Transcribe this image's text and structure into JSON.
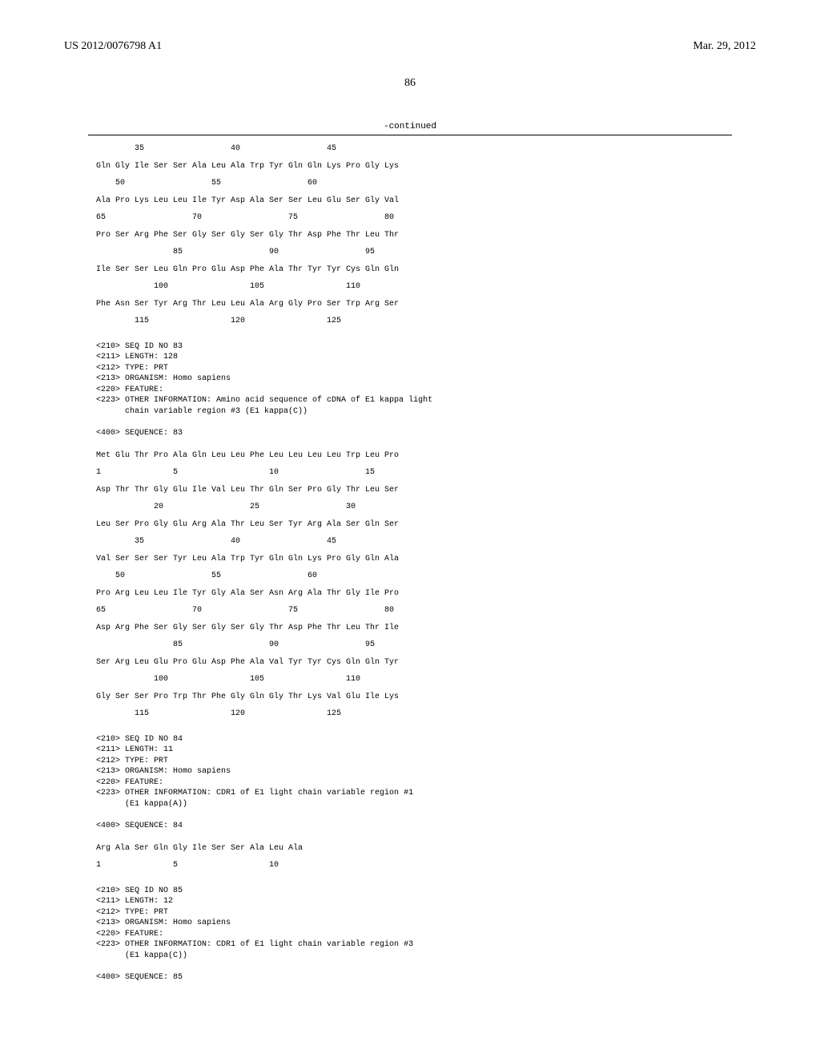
{
  "header": {
    "doc_number": "US 2012/0076798 A1",
    "doc_date": "Mar. 29, 2012"
  },
  "page_num": "86",
  "continued_label": "-continued",
  "seq_row_pos_1": "        35                  40                  45",
  "seq_a": [
    "Gln Gly Ile Ser Ser Ala Leu Ala Trp Tyr Gln Gln Lys Pro Gly Lys",
    "    50                  55                  60",
    "Ala Pro Lys Leu Leu Ile Tyr Asp Ala Ser Ser Leu Glu Ser Gly Val",
    "65                  70                  75                  80",
    "Pro Ser Arg Phe Ser Gly Ser Gly Ser Gly Thr Asp Phe Thr Leu Thr",
    "                85                  90                  95",
    "Ile Ser Ser Leu Gln Pro Glu Asp Phe Ala Thr Tyr Tyr Cys Gln Gln",
    "            100                 105                 110",
    "Phe Asn Ser Tyr Arg Thr Leu Leu Ala Arg Gly Pro Ser Trp Arg Ser",
    "        115                 120                 125"
  ],
  "meta_83": "<210> SEQ ID NO 83\n<211> LENGTH: 128\n<212> TYPE: PRT\n<213> ORGANISM: Homo sapiens\n<220> FEATURE:\n<223> OTHER INFORMATION: Amino acid sequence of cDNA of E1 kappa light\n      chain variable region #3 (E1 kappa(C))",
  "seq_83_label": "<400> SEQUENCE: 83",
  "seq_b": [
    "Met Glu Thr Pro Ala Gln Leu Leu Phe Leu Leu Leu Leu Trp Leu Pro",
    "1               5                   10                  15",
    "Asp Thr Thr Gly Glu Ile Val Leu Thr Gln Ser Pro Gly Thr Leu Ser",
    "            20                  25                  30",
    "Leu Ser Pro Gly Glu Arg Ala Thr Leu Ser Tyr Arg Ala Ser Gln Ser",
    "        35                  40                  45",
    "Val Ser Ser Ser Tyr Leu Ala Trp Tyr Gln Gln Lys Pro Gly Gln Ala",
    "    50                  55                  60",
    "Pro Arg Leu Leu Ile Tyr Gly Ala Ser Asn Arg Ala Thr Gly Ile Pro",
    "65                  70                  75                  80",
    "Asp Arg Phe Ser Gly Ser Gly Ser Gly Thr Asp Phe Thr Leu Thr Ile",
    "                85                  90                  95",
    "Ser Arg Leu Glu Pro Glu Asp Phe Ala Val Tyr Tyr Cys Gln Gln Tyr",
    "            100                 105                 110",
    "Gly Ser Ser Pro Trp Thr Phe Gly Gln Gly Thr Lys Val Glu Ile Lys",
    "        115                 120                 125"
  ],
  "meta_84": "<210> SEQ ID NO 84\n<211> LENGTH: 11\n<212> TYPE: PRT\n<213> ORGANISM: Homo sapiens\n<220> FEATURE:\n<223> OTHER INFORMATION: CDR1 of E1 light chain variable region #1\n      (E1 kappa(A))",
  "seq_84_label": "<400> SEQUENCE: 84",
  "seq_c": [
    "Arg Ala Ser Gln Gly Ile Ser Ser Ala Leu Ala",
    "1               5                   10"
  ],
  "meta_85": "<210> SEQ ID NO 85\n<211> LENGTH: 12\n<212> TYPE: PRT\n<213> ORGANISM: Homo sapiens\n<220> FEATURE:\n<223> OTHER INFORMATION: CDR1 of E1 light chain variable region #3\n      (E1 kappa(C))",
  "seq_85_label": "<400> SEQUENCE: 85"
}
